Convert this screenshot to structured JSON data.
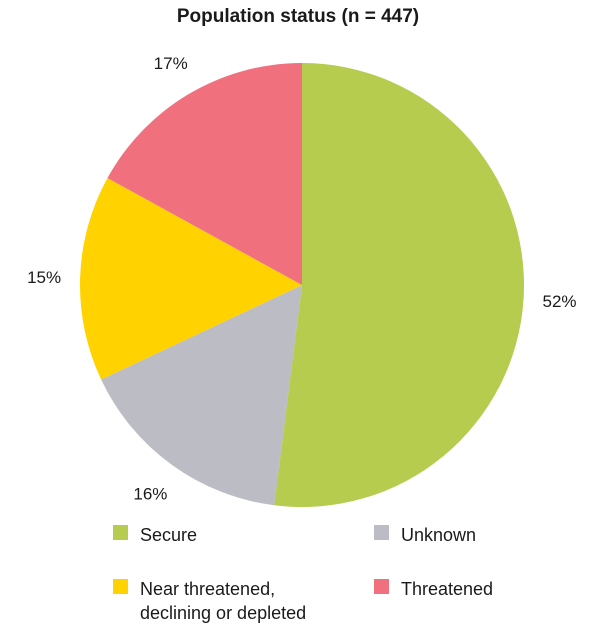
{
  "chart_data": {
    "type": "pie",
    "title": "Population status (n = 447)",
    "slices": [
      {
        "name": "Secure",
        "label": "52%",
        "value": 52,
        "color": "#b5cc4e"
      },
      {
        "name": "Unknown",
        "label": "16%",
        "value": 16,
        "color": "#bcbcc4"
      },
      {
        "name": "Near threatened,\ndeclining or depleted",
        "label": "15%",
        "value": 15,
        "color": "#ffd200"
      },
      {
        "name": "Threatened",
        "label": "17%",
        "value": 17,
        "color": "#f0707e"
      }
    ],
    "legend_placement": "bottom"
  }
}
